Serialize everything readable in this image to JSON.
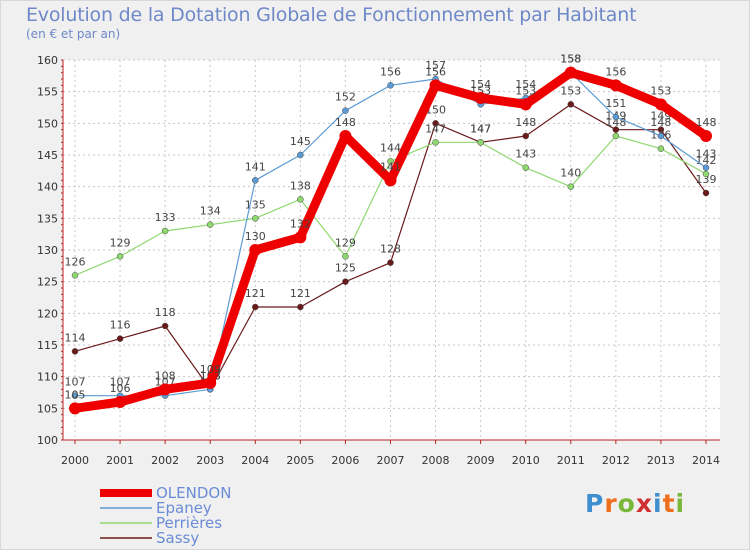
{
  "chart_data": {
    "type": "line",
    "title": "Evolution de la Dotation Globale de Fonctionnement par Habitant",
    "subtitle": "(en € et par an)",
    "x": [
      "2000",
      "2001",
      "2002",
      "2003",
      "2004",
      "2005",
      "2006",
      "2007",
      "2008",
      "2009",
      "2010",
      "2011",
      "2012",
      "2013",
      "2014"
    ],
    "ylim": [
      100,
      160
    ],
    "yticks": [
      100,
      105,
      110,
      115,
      120,
      125,
      130,
      135,
      140,
      145,
      150,
      155,
      160
    ],
    "series": [
      {
        "name": "Sassy",
        "color": "#6b1a1a",
        "values": [
          114,
          116,
          118,
          108,
          121,
          121,
          125,
          128,
          150,
          147,
          148,
          153,
          149,
          149,
          139
        ]
      },
      {
        "name": "Perrières",
        "color": "#8fd870",
        "values": [
          126,
          129,
          133,
          134,
          135,
          138,
          129,
          144,
          147,
          147,
          143,
          140,
          148,
          146,
          142
        ]
      },
      {
        "name": "Epaney",
        "color": "#5b9bd5",
        "values": [
          107,
          107,
          107,
          108,
          141,
          145,
          152,
          156,
          157,
          153,
          154,
          158,
          151,
          148,
          143
        ]
      },
      {
        "name": "OLENDON",
        "color": "#ee0000",
        "values": [
          105,
          106,
          108,
          109,
          130,
          132,
          148,
          141,
          156,
          154,
          153,
          158,
          156,
          153,
          148
        ]
      }
    ],
    "legend": [
      "OLENDON",
      "Epaney",
      "Perrières",
      "Sassy"
    ]
  },
  "logo": {
    "letters": [
      "P",
      "r",
      "o",
      "x",
      "i",
      "t",
      "i"
    ]
  }
}
